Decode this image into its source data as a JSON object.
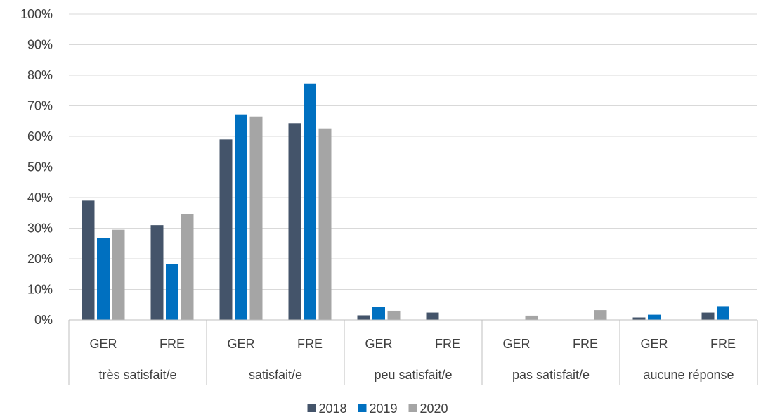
{
  "chart_data": {
    "type": "bar",
    "title": "",
    "xlabel": "",
    "ylabel": "",
    "ylim": [
      0,
      100
    ],
    "y_ticks": [
      "0%",
      "10%",
      "20%",
      "30%",
      "40%",
      "50%",
      "60%",
      "70%",
      "80%",
      "90%",
      "100%"
    ],
    "grid": true,
    "legend_position": "bottom",
    "groups": [
      {
        "label": "très satisfait/e",
        "subcategories": [
          "GER",
          "FRE"
        ]
      },
      {
        "label": "satisfait/e",
        "subcategories": [
          "GER",
          "FRE"
        ]
      },
      {
        "label": "peu satisfait/e",
        "subcategories": [
          "GER",
          "FRE"
        ]
      },
      {
        "label": "pas satisfait/e",
        "subcategories": [
          "GER",
          "FRE"
        ]
      },
      {
        "label": "aucune réponse",
        "subcategories": [
          "GER",
          "FRE"
        ]
      }
    ],
    "series": [
      {
        "name": "2018",
        "color": "#44546a",
        "values": [
          39,
          31,
          59,
          64.3,
          1.5,
          2.4,
          0,
          0,
          0.8,
          2.4
        ]
      },
      {
        "name": "2019",
        "color": "#0070c0",
        "values": [
          26.8,
          18.2,
          67.2,
          77.3,
          4.3,
          0,
          0,
          0,
          1.7,
          4.5
        ]
      },
      {
        "name": "2020",
        "color": "#a5a5a5",
        "values": [
          29.5,
          34.5,
          66.5,
          62.6,
          3,
          0,
          1.4,
          3.2,
          0,
          0
        ]
      }
    ]
  }
}
